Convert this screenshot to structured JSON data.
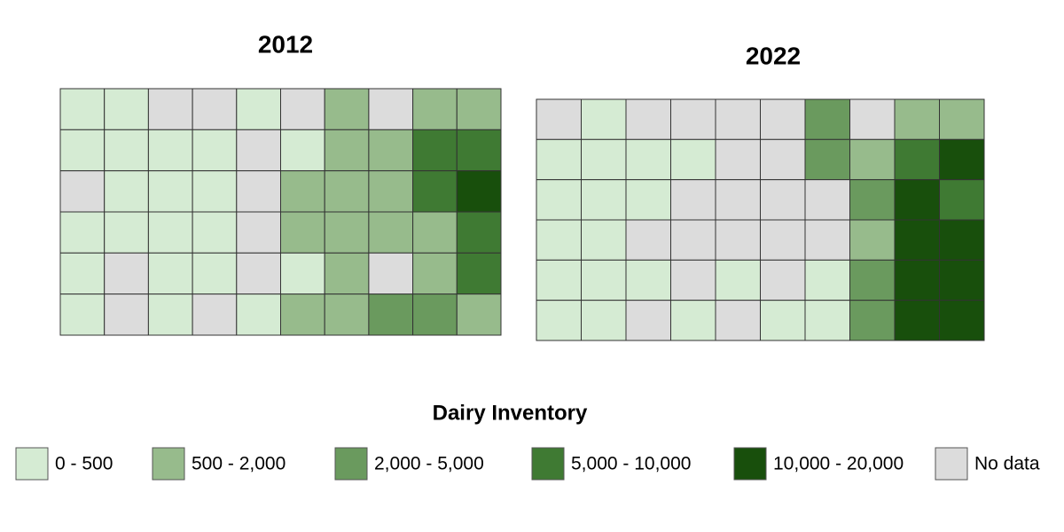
{
  "maps": [
    {
      "title": "2012",
      "rows": [
        [
          0,
          0,
          5,
          5,
          0,
          5,
          1,
          5,
          1,
          1
        ],
        [
          0,
          0,
          0,
          0,
          5,
          0,
          1,
          1,
          3,
          3
        ],
        [
          5,
          0,
          0,
          0,
          5,
          1,
          1,
          1,
          3,
          4
        ],
        [
          0,
          0,
          0,
          0,
          5,
          1,
          1,
          1,
          1,
          3
        ],
        [
          0,
          5,
          0,
          0,
          5,
          0,
          1,
          5,
          1,
          3
        ],
        [
          0,
          5,
          0,
          5,
          0,
          1,
          1,
          2,
          2,
          1
        ]
      ]
    },
    {
      "title": "2022",
      "rows": [
        [
          5,
          0,
          5,
          5,
          5,
          5,
          2,
          5,
          1,
          1
        ],
        [
          0,
          0,
          0,
          0,
          5,
          5,
          2,
          1,
          3,
          4
        ],
        [
          0,
          0,
          0,
          5,
          5,
          5,
          5,
          2,
          4,
          3
        ],
        [
          0,
          0,
          5,
          5,
          5,
          5,
          5,
          1,
          4,
          4
        ],
        [
          0,
          0,
          0,
          5,
          0,
          5,
          0,
          2,
          4,
          4
        ],
        [
          0,
          0,
          5,
          0,
          5,
          0,
          0,
          2,
          4,
          4
        ]
      ]
    }
  ],
  "legend": {
    "title": "Dairy Inventory",
    "items": [
      {
        "label": "0 - 500",
        "color": "#d5ebd3"
      },
      {
        "label": "500 - 2,000",
        "color": "#97bb8c"
      },
      {
        "label": "2,000 - 5,000",
        "color": "#6a9a5e"
      },
      {
        "label": "5,000 - 10,000",
        "color": "#3f7a33"
      },
      {
        "label": "10,000 - 20,000",
        "color": "#184f0c"
      },
      {
        "label": "No data",
        "color": "#dcdcdc"
      }
    ]
  }
}
